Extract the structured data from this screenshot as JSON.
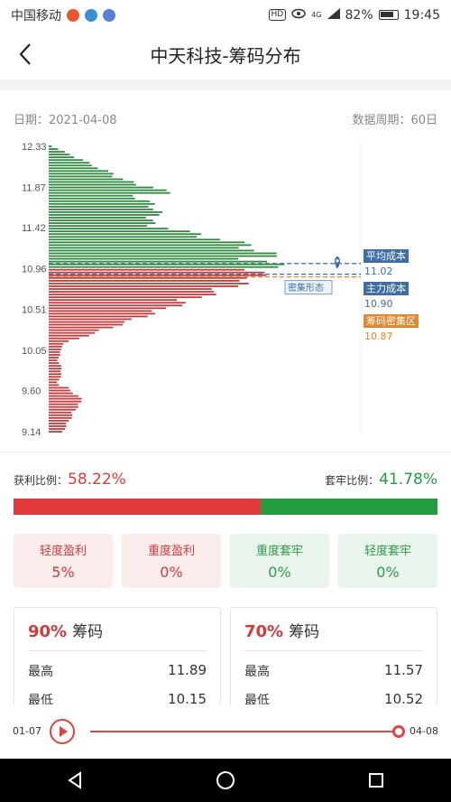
{
  "status_bar": {
    "carrier": "中国移动",
    "hd": "HD",
    "net": "4G",
    "battery": "82%",
    "time": "19:45"
  },
  "title": "中天科技-筹码分布",
  "info": {
    "date_label": "日期：2021-04-08",
    "period_label": "数据周期：60日"
  },
  "chart_data": {
    "type": "bar",
    "orientation": "horizontal",
    "y_ticks": [
      "12.33",
      "11.87",
      "11.42",
      "10.96",
      "10.51",
      "10.05",
      "9.60",
      "9.14"
    ],
    "ylim": [
      9.14,
      12.33
    ],
    "price_split": 10.96,
    "markers": [
      {
        "label": "平均成本",
        "value": "11.02",
        "color": "#3f6ea6"
      },
      {
        "label": "主力成本",
        "value": "10.90",
        "color": "#3f6ea6"
      },
      {
        "label": "筹码密集区",
        "value": "10.87",
        "color": "#e3862c"
      }
    ],
    "annotation": "密集形态",
    "colors": {
      "profit": "#2e8b3d",
      "loss": "#c73a3a"
    }
  },
  "ratios": {
    "profit_label": "获利比例：",
    "profit_value": "58.22%",
    "profit_fraction": 0.5822,
    "trapped_label": "套牢比例：",
    "trapped_value": "41.78%"
  },
  "tiles": [
    {
      "title": "轻度盈利",
      "value": "5%",
      "tone": "red"
    },
    {
      "title": "重度盈利",
      "value": "0%",
      "tone": "red"
    },
    {
      "title": "重度套牢",
      "value": "0%",
      "tone": "green"
    },
    {
      "title": "轻度套牢",
      "value": "0%",
      "tone": "green"
    }
  ],
  "cards": [
    {
      "percent": "90%",
      "name": "筹码",
      "high_label": "最高",
      "high": "11.89",
      "low_label": "最低",
      "low": "10.15"
    },
    {
      "percent": "70%",
      "name": "筹码",
      "high_label": "最高",
      "high": "11.57",
      "low_label": "最低",
      "low": "10.52"
    }
  ],
  "player": {
    "start_date": "01-07",
    "end_date": "04-08",
    "progress": 1.0
  },
  "icons": {
    "back": "chevron-left-icon",
    "play": "play-icon",
    "nav_back": "triangle-back-icon",
    "nav_home": "circle-home-icon",
    "nav_recent": "square-recent-icon"
  }
}
